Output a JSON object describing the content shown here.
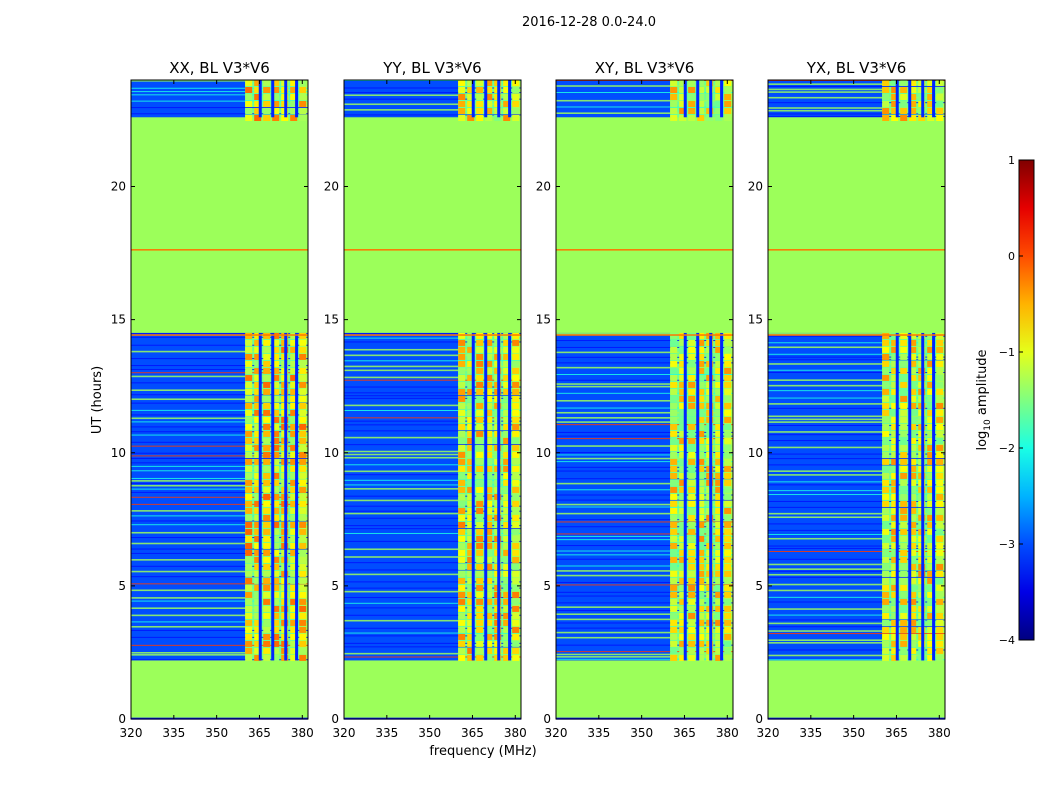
{
  "chart_data": {
    "type": "heatmap",
    "suptitle": "2016-12-28 0.0-24.0",
    "xlabel": "frequency (MHz)",
    "ylabel": "UT (hours)",
    "xlim": [
      320,
      382
    ],
    "ylim": [
      0,
      24
    ],
    "xticks": [
      "320",
      "335",
      "350",
      "365",
      "380"
    ],
    "yticks": [
      "0",
      "5",
      "10",
      "15",
      "20"
    ],
    "xtick_values": [
      320,
      335,
      350,
      365,
      380
    ],
    "ytick_values": [
      0,
      5,
      10,
      15,
      20
    ],
    "colorbar": {
      "label": "log10 amplitude",
      "label_main": "log",
      "label_sub": "10",
      "label_rest": " amplitude",
      "range": [
        -4,
        1
      ],
      "ticks": [
        "1",
        "0",
        "−1",
        "−2",
        "−3",
        "−4"
      ],
      "tick_values": [
        1,
        0,
        -1,
        -2,
        -3,
        -4
      ],
      "colormap": "jet"
    },
    "flagged_color": "#9cff5a",
    "band_start_mhz": 360,
    "band_end_mhz": 379,
    "observation_blocks_hours": [
      [
        2.2,
        14.5
      ],
      [
        22.6,
        24.0
      ]
    ],
    "panels": [
      {
        "title": "XX, BL V3*V6",
        "band_level": -0.5
      },
      {
        "title": "YY, BL V3*V6",
        "band_level": -0.6
      },
      {
        "title": "XY, BL V3*V6",
        "band_level": -0.7
      },
      {
        "title": "YX, BL V3*V6",
        "band_level": -0.7
      }
    ]
  }
}
